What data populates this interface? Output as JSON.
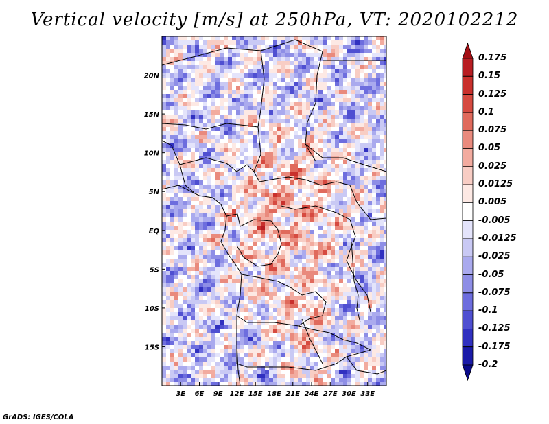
{
  "title": "Vertical velocity [m/s] at 250hPa, VT: 2020102212",
  "credit": "GrADS: IGES/COLA",
  "map": {
    "field": "Vertical velocity",
    "units": "m/s",
    "level": "250hPa",
    "valid_time": "2020102212",
    "lon_range": [
      0,
      36
    ],
    "lat_range": [
      -20,
      25
    ],
    "lon_ticks": [
      "3E",
      "6E",
      "9E",
      "12E",
      "15E",
      "18E",
      "21E",
      "24E",
      "27E",
      "30E",
      "33E"
    ],
    "lat_ticks": [
      "20N",
      "15N",
      "10N",
      "5N",
      "EQ",
      "5S",
      "10S",
      "15S"
    ]
  },
  "colorbar": {
    "labels": [
      "0.175",
      "0.15",
      "0.125",
      "0.1",
      "0.075",
      "0.05",
      "0.025",
      "0.0125",
      "0.005",
      "-0.005",
      "-0.0125",
      "-0.025",
      "-0.05",
      "-0.075",
      "-0.1",
      "-0.125",
      "-0.175",
      "-0.2"
    ],
    "colors": [
      "#a50f15",
      "#b81d22",
      "#c9302c",
      "#d64a40",
      "#e06a5c",
      "#e98a7d",
      "#f2ab9f",
      "#f8cdc4",
      "#fde9e4",
      "#ffffff",
      "#e4e4fb",
      "#c9c9f4",
      "#aaaaee",
      "#8e8ee6",
      "#6d6dde",
      "#4f4fd1",
      "#3030c0",
      "#1a1aa8",
      "#0b0b8a"
    ]
  }
}
